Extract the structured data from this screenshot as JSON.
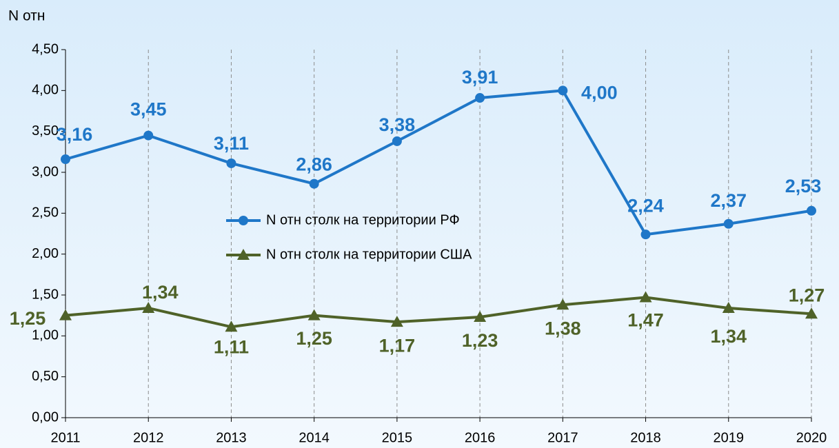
{
  "chart_data": {
    "type": "line",
    "ylabel": "N отн",
    "categories": [
      "2011",
      "2012",
      "2013",
      "2014",
      "2015",
      "2016",
      "2017",
      "2018",
      "2019",
      "2020"
    ],
    "series": [
      {
        "name": "N отн столк на территории РФ",
        "color": "#1f77c8",
        "marker": "circle",
        "values": [
          3.16,
          3.45,
          3.11,
          2.86,
          3.38,
          3.91,
          4.0,
          2.24,
          2.37,
          2.53
        ],
        "value_labels": [
          "3,16",
          "3,45",
          "3,11",
          "2,86",
          "3,38",
          "3,91",
          "4,00",
          "2,24",
          "2,37",
          "2,53"
        ]
      },
      {
        "name": "N отн столк на территории США",
        "color": "#4f6228",
        "marker": "triangle",
        "values": [
          1.25,
          1.34,
          1.11,
          1.25,
          1.17,
          1.23,
          1.38,
          1.47,
          1.34,
          1.27
        ],
        "value_labels": [
          "1,25",
          "1,34",
          "1,11",
          "1,25",
          "1,17",
          "1,23",
          "1,38",
          "1,47",
          "1,34",
          "1,27"
        ]
      }
    ],
    "ylim": [
      0,
      4.5
    ],
    "yticks": [
      {
        "value": 0,
        "label": "0,00"
      },
      {
        "value": 0.5,
        "label": "0,50"
      },
      {
        "value": 1,
        "label": "1,00"
      },
      {
        "value": 1.5,
        "label": "1,50"
      },
      {
        "value": 2,
        "label": "2,00"
      },
      {
        "value": 2.5,
        "label": "2,50"
      },
      {
        "value": 3,
        "label": "3,00"
      },
      {
        "value": 3.5,
        "label": "3,50"
      },
      {
        "value": 4,
        "label": "4,00"
      },
      {
        "value": 4.5,
        "label": "4,50"
      }
    ],
    "grid": "x"
  }
}
